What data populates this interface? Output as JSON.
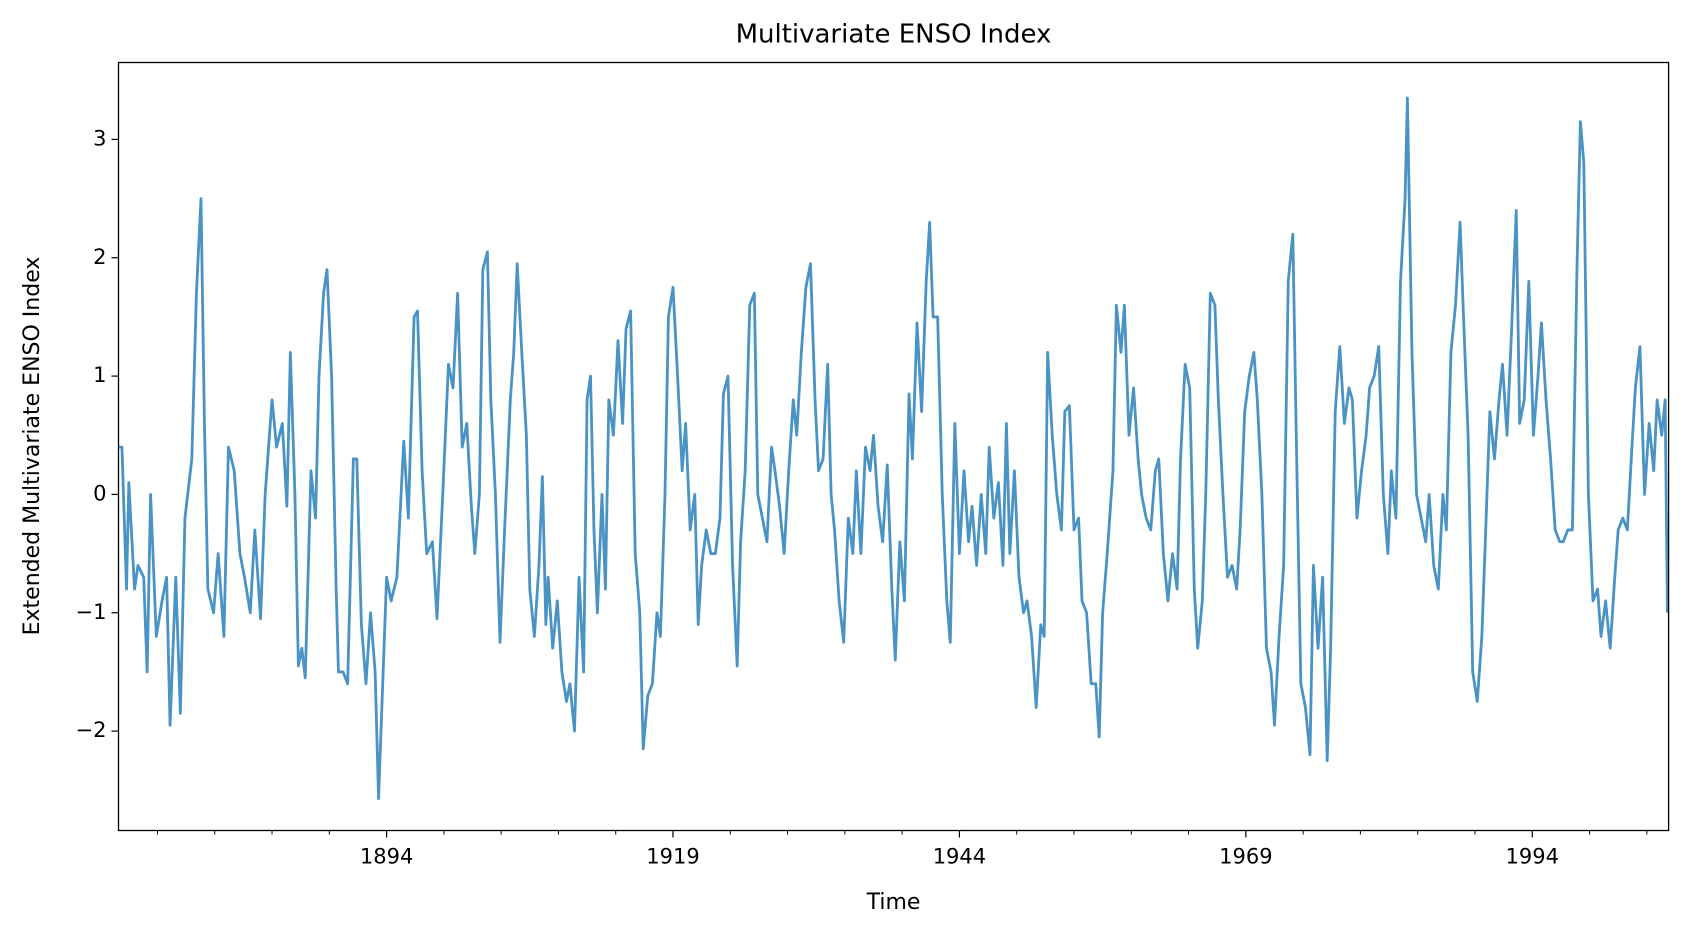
{
  "chart_data": {
    "type": "line",
    "title": "Multivariate ENSO Index",
    "x_label": "Time",
    "y_label": "Extended Multivariate ENSO Index",
    "xlim": [
      1870.6,
      2005.9
    ],
    "ylim": [
      -2.84,
      3.65
    ],
    "xticks": [
      1894,
      1919,
      1944,
      1969,
      1994
    ],
    "xminor_ticks": [
      1874,
      1879,
      1884,
      1889,
      1899,
      1904,
      1909,
      1914,
      1924,
      1929,
      1934,
      1939,
      1949,
      1954,
      1959,
      1964,
      1974,
      1979,
      1984,
      1989,
      1999,
      2004
    ],
    "yticks": [
      {
        "value": -2,
        "label": "−2"
      },
      {
        "value": -1,
        "label": "−1"
      },
      0,
      1,
      2,
      3
    ],
    "grid": false,
    "x": [
      1870.6,
      1870.9,
      1871.3,
      1871.5,
      1872.0,
      1872.3,
      1872.8,
      1873.1,
      1873.4,
      1873.9,
      1874.4,
      1874.8,
      1875.1,
      1875.6,
      1876.0,
      1876.4,
      1877.0,
      1877.4,
      1877.8,
      1878.1,
      1878.4,
      1878.9,
      1879.3,
      1879.8,
      1880.2,
      1880.7,
      1881.2,
      1881.6,
      1882.1,
      1882.5,
      1883.0,
      1883.4,
      1884.0,
      1884.4,
      1884.9,
      1885.3,
      1885.6,
      1886.0,
      1886.3,
      1886.6,
      1886.9,
      1887.4,
      1887.8,
      1888.1,
      1888.5,
      1888.8,
      1889.2,
      1889.6,
      1889.8,
      1890.2,
      1890.6,
      1891.1,
      1891.4,
      1891.8,
      1892.2,
      1892.6,
      1893.0,
      1893.3,
      1893.7,
      1894.0,
      1894.4,
      1894.9,
      1895.5,
      1895.9,
      1896.4,
      1896.7,
      1897.1,
      1897.5,
      1898.0,
      1898.4,
      1898.9,
      1899.4,
      1899.8,
      1900.2,
      1900.6,
      1901.0,
      1901.4,
      1901.7,
      1902.1,
      1902.4,
      1902.8,
      1903.1,
      1903.5,
      1903.9,
      1904.3,
      1904.8,
      1905.1,
      1905.4,
      1905.8,
      1906.2,
      1906.5,
      1906.9,
      1907.3,
      1907.6,
      1907.9,
      1908.1,
      1908.5,
      1908.9,
      1909.3,
      1909.7,
      1910.0,
      1910.4,
      1910.8,
      1911.2,
      1911.5,
      1911.8,
      1912.1,
      1912.4,
      1912.8,
      1913.1,
      1913.4,
      1913.8,
      1914.2,
      1914.6,
      1914.9,
      1915.3,
      1915.7,
      1916.1,
      1916.4,
      1916.8,
      1917.2,
      1917.6,
      1917.9,
      1918.3,
      1918.6,
      1919.0,
      1919.4,
      1919.8,
      1920.1,
      1920.5,
      1920.9,
      1921.2,
      1921.5,
      1921.9,
      1922.3,
      1922.7,
      1923.1,
      1923.4,
      1923.8,
      1924.2,
      1924.6,
      1924.9,
      1925.3,
      1925.7,
      1926.1,
      1926.4,
      1926.8,
      1927.2,
      1927.6,
      1927.9,
      1928.3,
      1928.7,
      1929.1,
      1929.5,
      1929.8,
      1930.2,
      1930.6,
      1931.0,
      1931.4,
      1931.7,
      1932.1,
      1932.5,
      1932.8,
      1933.1,
      1933.5,
      1933.9,
      1934.3,
      1934.7,
      1935.0,
      1935.4,
      1935.8,
      1936.2,
      1936.5,
      1936.9,
      1937.3,
      1937.7,
      1938.1,
      1938.4,
      1938.8,
      1939.2,
      1939.6,
      1939.9,
      1940.3,
      1940.7,
      1941.1,
      1941.4,
      1941.7,
      1942.1,
      1942.5,
      1942.9,
      1943.2,
      1943.6,
      1944.0,
      1944.4,
      1944.8,
      1945.1,
      1945.5,
      1945.9,
      1946.3,
      1946.6,
      1947.0,
      1947.4,
      1947.8,
      1948.1,
      1948.4,
      1948.8,
      1949.2,
      1949.6,
      1949.9,
      1950.3,
      1950.7,
      1951.1,
      1951.4,
      1951.7,
      1952.1,
      1952.5,
      1952.9,
      1953.2,
      1953.6,
      1954.0,
      1954.4,
      1954.7,
      1955.1,
      1955.5,
      1955.9,
      1956.2,
      1956.5,
      1956.9,
      1957.4,
      1957.7,
      1958.1,
      1958.4,
      1958.8,
      1959.2,
      1959.6,
      1959.9,
      1960.3,
      1960.7,
      1961.1,
      1961.4,
      1961.8,
      1962.2,
      1962.6,
      1963.0,
      1963.3,
      1963.7,
      1964.1,
      1964.5,
      1964.8,
      1965.2,
      1965.5,
      1965.9,
      1966.3,
      1966.6,
      1967.0,
      1967.4,
      1967.8,
      1968.2,
      1968.5,
      1968.9,
      1969.3,
      1969.7,
      1970.0,
      1970.4,
      1970.8,
      1971.2,
      1971.5,
      1971.9,
      1972.3,
      1972.7,
      1973.1,
      1973.4,
      1973.8,
      1974.2,
      1974.6,
      1974.9,
      1975.3,
      1975.7,
      1976.1,
      1976.4,
      1976.8,
      1977.2,
      1977.6,
      1978.0,
      1978.3,
      1978.7,
      1979.1,
      1979.5,
      1979.8,
      1980.2,
      1980.6,
      1981.0,
      1981.4,
      1981.7,
      1982.1,
      1982.5,
      1982.9,
      1983.1,
      1983.5,
      1983.9,
      1984.3,
      1984.7,
      1985.0,
      1985.4,
      1985.8,
      1986.2,
      1986.5,
      1986.9,
      1987.3,
      1987.7,
      1988.0,
      1988.4,
      1988.8,
      1989.2,
      1989.6,
      1989.9,
      1990.3,
      1990.7,
      1991.1,
      1991.4,
      1991.8,
      1992.2,
      1992.6,
      1992.9,
      1993.3,
      1993.7,
      1994.1,
      1994.5,
      1994.8,
      1995.2,
      1995.6,
      1996.0,
      1996.4,
      1996.7,
      1997.1,
      1997.5,
      1997.9,
      1998.2,
      1998.5,
      1998.9,
      1999.3,
      1999.7,
      2000.0,
      2000.4,
      2000.8,
      2001.2,
      2001.5,
      2001.9,
      2002.3,
      2002.7,
      2003.0,
      2003.4,
      2003.8,
      2004.2,
      2004.6,
      2004.9,
      2005.3,
      2005.6,
      2005.8
    ],
    "series": [
      {
        "color": "#4a93c5",
        "values": [
          0.4,
          0.4,
          -0.8,
          0.1,
          -0.8,
          -0.6,
          -0.7,
          -1.5,
          0.0,
          -1.2,
          -0.9,
          -0.7,
          -1.95,
          -0.7,
          -1.85,
          -0.2,
          0.3,
          1.7,
          2.5,
          0.6,
          -0.8,
          -1.0,
          -0.5,
          -1.2,
          0.4,
          0.2,
          -0.5,
          -0.7,
          -1.0,
          -0.3,
          -1.05,
          0.0,
          0.8,
          0.4,
          0.6,
          -0.1,
          1.2,
          0.0,
          -1.45,
          -1.3,
          -1.55,
          0.2,
          -0.2,
          1.0,
          1.7,
          1.9,
          1.0,
          -0.8,
          -1.5,
          -1.5,
          -1.6,
          0.3,
          0.3,
          -1.1,
          -1.6,
          -1.0,
          -1.5,
          -2.57,
          -1.5,
          -0.7,
          -0.9,
          -0.7,
          0.45,
          -0.2,
          1.5,
          1.55,
          0.2,
          -0.5,
          -0.4,
          -1.05,
          0.0,
          1.1,
          0.9,
          1.7,
          0.4,
          0.6,
          -0.1,
          -0.5,
          0.0,
          1.9,
          2.05,
          0.8,
          0.0,
          -1.25,
          -0.3,
          0.8,
          1.2,
          1.95,
          1.2,
          0.5,
          -0.8,
          -1.2,
          -0.6,
          0.15,
          -1.1,
          -0.7,
          -1.3,
          -0.9,
          -1.5,
          -1.75,
          -1.6,
          -2.0,
          -0.7,
          -1.5,
          0.8,
          1.0,
          -0.3,
          -1.0,
          0.0,
          -0.8,
          0.8,
          0.5,
          1.3,
          0.6,
          1.4,
          1.55,
          -0.5,
          -1.0,
          -2.15,
          -1.7,
          -1.6,
          -1.0,
          -1.2,
          0.0,
          1.5,
          1.75,
          1.0,
          0.2,
          0.6,
          -0.3,
          0.0,
          -1.1,
          -0.6,
          -0.3,
          -0.5,
          -0.5,
          -0.2,
          0.85,
          1.0,
          -0.6,
          -1.45,
          -0.4,
          0.2,
          1.6,
          1.7,
          0.0,
          -0.2,
          -0.4,
          0.4,
          0.2,
          -0.1,
          -0.5,
          0.2,
          0.8,
          0.5,
          1.2,
          1.75,
          1.95,
          0.8,
          0.2,
          0.3,
          1.1,
          0.0,
          -0.3,
          -0.9,
          -1.25,
          -0.2,
          -0.5,
          0.2,
          -0.5,
          0.4,
          0.2,
          0.5,
          -0.1,
          -0.4,
          0.25,
          -0.8,
          -1.4,
          -0.4,
          -0.9,
          0.85,
          0.3,
          1.45,
          0.7,
          1.8,
          2.3,
          1.5,
          1.5,
          0.0,
          -0.9,
          -1.25,
          0.6,
          -0.5,
          0.2,
          -0.4,
          -0.1,
          -0.6,
          0.0,
          -0.5,
          0.4,
          -0.2,
          0.1,
          -0.6,
          0.6,
          -0.5,
          0.2,
          -0.7,
          -1.0,
          -0.9,
          -1.2,
          -1.8,
          -1.1,
          -1.2,
          1.2,
          0.5,
          0.0,
          -0.3,
          0.7,
          0.75,
          -0.3,
          -0.2,
          -0.9,
          -1.0,
          -1.6,
          -1.6,
          -2.05,
          -1.0,
          -0.5,
          0.2,
          1.6,
          1.2,
          1.6,
          0.5,
          0.9,
          0.3,
          0.0,
          -0.2,
          -0.3,
          0.2,
          0.3,
          -0.5,
          -0.9,
          -0.5,
          -0.8,
          0.3,
          1.1,
          0.9,
          -0.8,
          -1.3,
          -0.9,
          0.0,
          1.7,
          1.6,
          0.8,
          0.0,
          -0.7,
          -0.6,
          -0.8,
          -0.3,
          0.7,
          1.0,
          1.2,
          0.8,
          0.0,
          -1.3,
          -1.5,
          -1.95,
          -1.2,
          -0.6,
          1.8,
          2.2,
          0.5,
          -1.6,
          -1.8,
          -2.2,
          -0.6,
          -1.3,
          -0.7,
          -2.25,
          -1.3,
          0.7,
          1.25,
          0.6,
          0.9,
          0.8,
          -0.2,
          0.2,
          0.5,
          0.9,
          1.0,
          1.25,
          0.0,
          -0.5,
          0.2,
          -0.2,
          1.8,
          2.5,
          3.35,
          1.2,
          0.0,
          -0.2,
          -0.4,
          0.0,
          -0.6,
          -0.8,
          0.0,
          -0.3,
          1.2,
          1.6,
          2.3,
          1.5,
          0.5,
          -1.5,
          -1.75,
          -1.2,
          -0.4,
          0.7,
          0.3,
          0.8,
          1.1,
          0.5,
          1.4,
          2.4,
          0.6,
          0.8,
          1.8,
          0.5,
          1.0,
          1.45,
          0.8,
          0.3,
          -0.3,
          -0.4,
          -0.4,
          -0.3,
          -0.3,
          1.9,
          3.15,
          2.8,
          0.0,
          -0.9,
          -0.8,
          -1.2,
          -0.9,
          -1.3,
          -0.7,
          -0.3,
          -0.2,
          -0.3,
          0.4,
          0.9,
          1.25,
          0.0,
          0.6,
          0.2,
          0.8,
          0.5,
          0.8,
          -1.0
        ]
      }
    ]
  }
}
